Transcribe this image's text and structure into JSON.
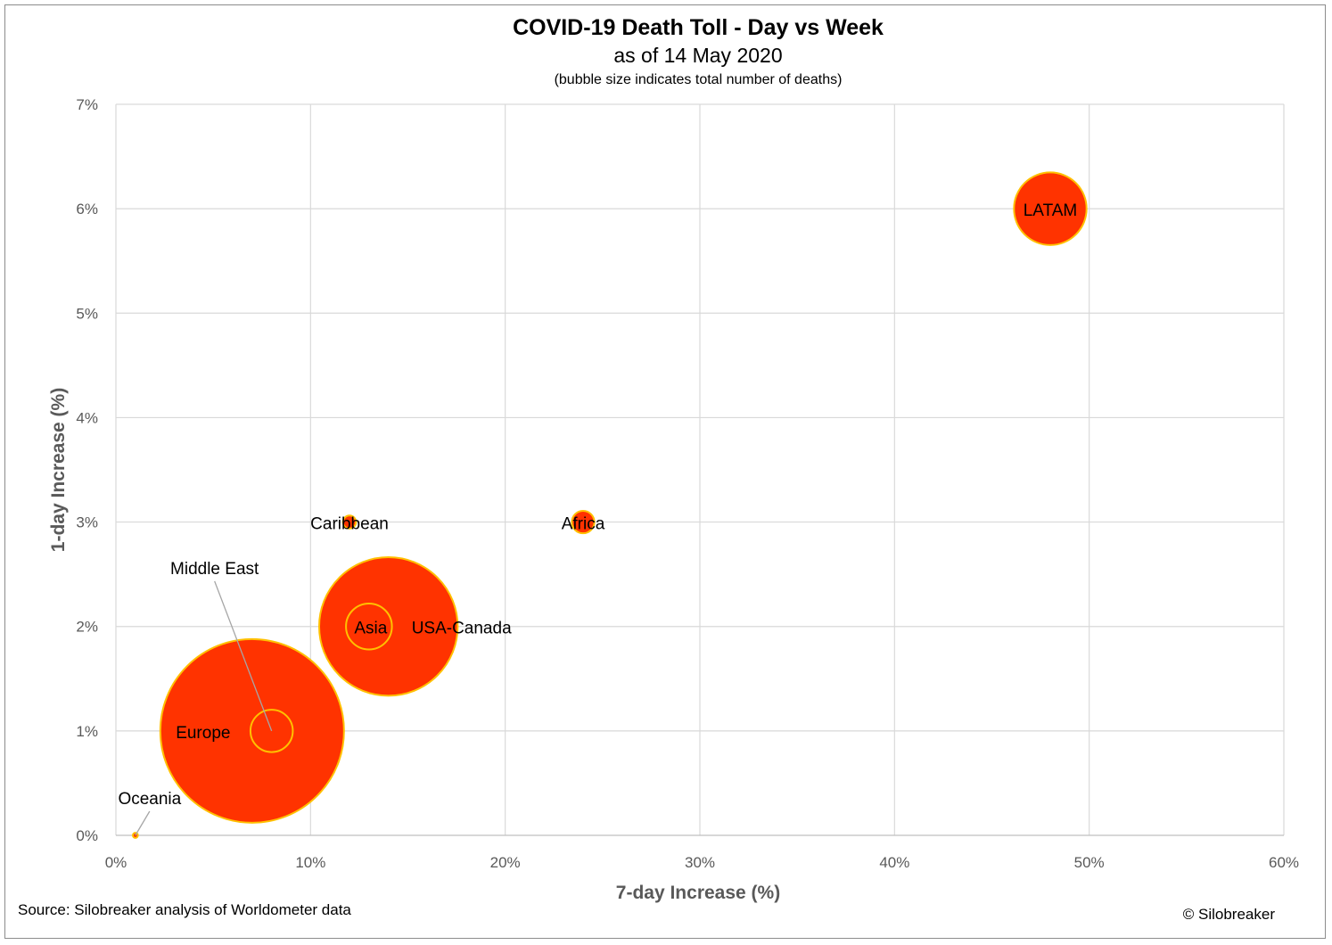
{
  "chart_data": {
    "type": "bubble",
    "title": "COVID-19 Death Toll - Day vs Week",
    "subtitle": "as of 14 May 2020",
    "note": "(bubble size indicates total number of deaths)",
    "xlabel": "7-day Increase (%)",
    "ylabel": "1-day Increase (%)",
    "xlim": [
      0,
      60
    ],
    "ylim": [
      0,
      7
    ],
    "x_ticks": [
      "0%",
      "10%",
      "20%",
      "30%",
      "40%",
      "50%",
      "60%"
    ],
    "y_ticks": [
      "0%",
      "1%",
      "2%",
      "3%",
      "4%",
      "5%",
      "6%",
      "7%"
    ],
    "grid": true,
    "bubble_fill": "#ff3300",
    "bubble_edge": "#ffc000",
    "series": [
      {
        "label": "Europe",
        "x": 7,
        "y": 1,
        "size": 160000
      },
      {
        "label": "USA-Canada",
        "x": 14,
        "y": 2,
        "size": 91000
      },
      {
        "label": "LATAM",
        "x": 48,
        "y": 6,
        "size": 25000
      },
      {
        "label": "Asia",
        "x": 13,
        "y": 2,
        "size": 10000
      },
      {
        "label": "Middle East",
        "x": 8,
        "y": 1,
        "size": 8500
      },
      {
        "label": "Africa",
        "x": 24,
        "y": 3,
        "size": 2400
      },
      {
        "label": "Caribbean",
        "x": 12,
        "y": 3,
        "size": 800
      },
      {
        "label": "Oceania",
        "x": 1,
        "y": 0,
        "size": 120
      }
    ]
  },
  "footer": {
    "source": "Source: Silobreaker analysis of Worldometer data",
    "credit": "© Silobreaker"
  }
}
